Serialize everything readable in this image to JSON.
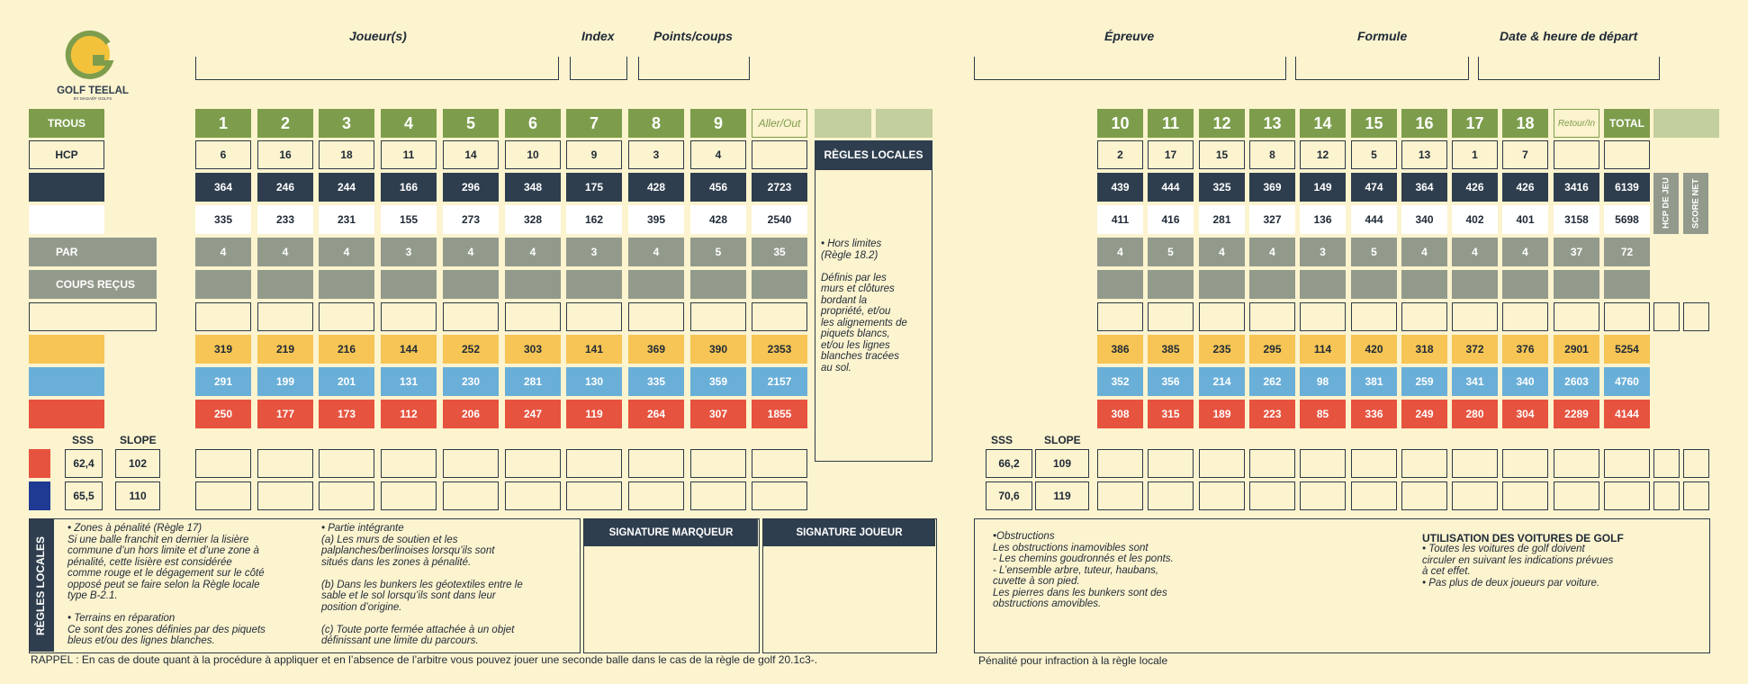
{
  "logo": {
    "name": "GOLF TEELAL",
    "sub": "BY MADAËF GOLFS"
  },
  "header": {
    "player": "Joueur(s)",
    "index": "Index",
    "points": "Points/coups",
    "event": "Épreuve",
    "formula": "Formule",
    "date": "Date & heure de départ"
  },
  "rows": {
    "holes": "TROUS",
    "hcp": "HCP",
    "par": "PAR",
    "coups": "COUPS REÇUS",
    "sss": "SSS",
    "slope": "SLOPE"
  },
  "labels": {
    "out": "Aller/Out",
    "in": "Retour/In",
    "total": "TOTAL",
    "hcp_jeu": "HCP DE JEU",
    "score_net": "SCORE NET"
  },
  "front": {
    "holes": [
      "1",
      "2",
      "3",
      "4",
      "5",
      "6",
      "7",
      "8",
      "9"
    ],
    "hcp": [
      "6",
      "16",
      "18",
      "11",
      "14",
      "10",
      "9",
      "3",
      "4"
    ],
    "black": [
      "364",
      "246",
      "244",
      "166",
      "296",
      "348",
      "175",
      "428",
      "456",
      "2723"
    ],
    "white": [
      "335",
      "233",
      "231",
      "155",
      "273",
      "328",
      "162",
      "395",
      "428",
      "2540"
    ],
    "par": [
      "4",
      "4",
      "4",
      "3",
      "4",
      "4",
      "3",
      "4",
      "5",
      "35"
    ],
    "yellow": [
      "319",
      "219",
      "216",
      "144",
      "252",
      "303",
      "141",
      "369",
      "390",
      "2353"
    ],
    "blue": [
      "291",
      "199",
      "201",
      "131",
      "230",
      "281",
      "130",
      "335",
      "359",
      "2157"
    ],
    "red": [
      "250",
      "177",
      "173",
      "112",
      "206",
      "247",
      "119",
      "264",
      "307",
      "1855"
    ]
  },
  "back": {
    "holes": [
      "10",
      "11",
      "12",
      "13",
      "14",
      "15",
      "16",
      "17",
      "18"
    ],
    "hcp": [
      "2",
      "17",
      "15",
      "8",
      "12",
      "5",
      "13",
      "1",
      "7"
    ],
    "black": [
      "439",
      "444",
      "325",
      "369",
      "149",
      "474",
      "364",
      "426",
      "426",
      "3416",
      "6139"
    ],
    "white": [
      "411",
      "416",
      "281",
      "327",
      "136",
      "444",
      "340",
      "402",
      "401",
      "3158",
      "5698"
    ],
    "par": [
      "4",
      "5",
      "4",
      "4",
      "3",
      "5",
      "4",
      "4",
      "4",
      "37",
      "72"
    ],
    "yellow": [
      "386",
      "385",
      "235",
      "295",
      "114",
      "420",
      "318",
      "372",
      "376",
      "2901",
      "5254"
    ],
    "blue": [
      "352",
      "356",
      "214",
      "262",
      "98",
      "381",
      "259",
      "341",
      "340",
      "2603",
      "4760"
    ],
    "red": [
      "308",
      "315",
      "189",
      "223",
      "85",
      "336",
      "249",
      "280",
      "304",
      "2289",
      "4144"
    ]
  },
  "ratings": {
    "front_red": {
      "sss": "62,4",
      "slope": "102"
    },
    "front_blue": {
      "sss": "65,5",
      "slope": "110"
    },
    "back_1": {
      "sss": "66,2",
      "slope": "109"
    },
    "back_2": {
      "sss": "70,6",
      "slope": "119"
    }
  },
  "local_rules_box": {
    "title": "RÈGLES LOCALES",
    "text": "• Hors limites\n(Règle 18.2)\n\nDéfinis par les\nmurs et clôtures\nbordant la\npropriété, et/ou\nles alignements de\npiquets blancs,\n et/ou les lignes\nblanches tracées\nau sol."
  },
  "bottom": {
    "side_title": "RÈGLES LOCALES",
    "col1": "• Zones à pénalité (Règle 17)\nSi une balle franchit en dernier la lisière\ncommune d’un hors limite et d’une zone à\npénalité, cette lisière est considérée\ncomme rouge et le dégagement sur le côté\nopposé peut se faire selon la Règle locale\ntype B-2.1.\n\n• Terrains en réparation\nCe sont des zones définies par des piquets\nbleus et/ou des lignes blanches.",
    "col2": "• Partie intégrante\n(a) Les murs de soutien et les\npalplanches/berlinoises lorsqu’ils sont\nsitués dans les zones à pénalité.\n\n(b) Dans les bunkers les géotextiles entre le\nsable et le sol lorsqu’ils sont dans leur\nposition d’origine.\n\n(c) Toute porte fermée attachée à un objet\ndéfinissant une limite du parcours.",
    "sig_marker": "SIGNATURE MARQUEUR",
    "sig_player": "SIGNATURE JOUEUR",
    "obstructions": "•Obstructions\nLes obstructions inamovibles sont\n- Les chemins goudronnés et les ponts.\n- L’ensemble arbre, tuteur, haubans,\ncuvette à son pied.\nLes pierres dans les bunkers sont des\nobstructions amovibles.",
    "cars_title": "UTILISATION DES VOITURES DE GOLF",
    "cars": "• Toutes les voitures de golf doivent\ncirculer en suivant les indications prévues\nà cet effet.\n• Pas plus de deux joueurs par voiture.",
    "rappel": "RAPPEL : En cas de doute quant à la procédure à appliquer et en l’absence de l’arbitre  vous pouvez jouer une seconde balle dans le cas de la règle de golf 20.1c3-.",
    "penalty": "Pénalité pour infraction à la règle locale"
  },
  "colors": {
    "green": "#7d9d4c",
    "navy": "#2f3e4e",
    "grey": "#929a8c",
    "yellow": "#f6c555",
    "blue": "#6aafd8",
    "red": "#e6533f",
    "dark_blue": "#1f3a93",
    "bg": "#fcf3cf"
  }
}
